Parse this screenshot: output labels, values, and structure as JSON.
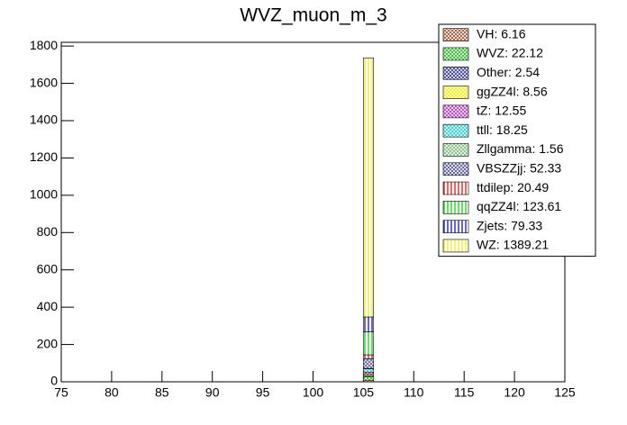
{
  "chart_data": {
    "type": "histogram",
    "title": "WVZ_muon_m_3",
    "bins": [
      105,
      106
    ],
    "xlim": [
      75,
      125
    ],
    "xticks": [
      75,
      80,
      85,
      90,
      95,
      100,
      105,
      110,
      115,
      120,
      125
    ],
    "ylim": [
      0,
      1820
    ],
    "yticks": [
      0,
      200,
      400,
      600,
      800,
      1000,
      1200,
      1400,
      1600,
      1800
    ],
    "stacked": true,
    "legend": "top-right",
    "series": [
      {
        "name": "VH: 6.16",
        "color": "#a0522d",
        "hatch": "dense",
        "values": [
          6.16
        ]
      },
      {
        "name": "WVZ: 22.12",
        "color": "#22bb22",
        "hatch": "dense",
        "values": [
          22.12
        ]
      },
      {
        "name": "Other: 2.54",
        "color": "#333399",
        "hatch": "dense",
        "values": [
          2.54
        ]
      },
      {
        "name": "ggZZ4l: 8.56",
        "color": "#eeee00",
        "hatch": "dense",
        "values": [
          8.56
        ]
      },
      {
        "name": "tZ: 12.55",
        "color": "#bb33cc",
        "hatch": "dense",
        "values": [
          12.55
        ]
      },
      {
        "name": "ttll: 18.25",
        "color": "#22cccc",
        "hatch": "dense",
        "values": [
          18.25
        ]
      },
      {
        "name": "Zllgamma: 1.56",
        "color": "#77bb77",
        "hatch": "dense",
        "values": [
          1.56
        ]
      },
      {
        "name": "VBSZZjj: 52.33",
        "color": "#555599",
        "hatch": "dense",
        "values": [
          52.33
        ]
      },
      {
        "name": "ttdilep: 20.49",
        "color": "#dd0000",
        "hatch": "vertical",
        "values": [
          20.49
        ]
      },
      {
        "name": "qqZZ4l: 123.61",
        "color": "#00cc00",
        "hatch": "vertical",
        "values": [
          123.61
        ]
      },
      {
        "name": "Zjets: 79.33",
        "color": "#0000bb",
        "hatch": "vertical",
        "values": [
          79.33
        ]
      },
      {
        "name": "WZ: 1389.21",
        "color": "#eeee00",
        "hatch": "vertical",
        "values": [
          1389.21
        ]
      }
    ]
  }
}
